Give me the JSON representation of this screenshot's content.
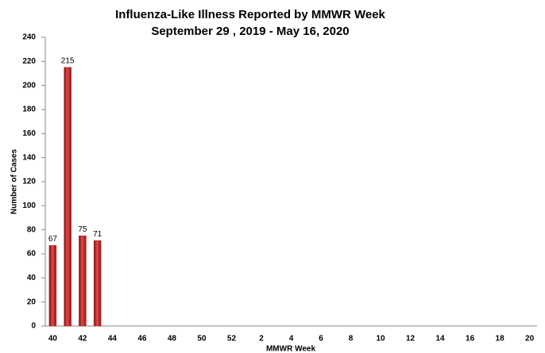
{
  "chart_data": {
    "type": "bar",
    "title": "Influenza-Like Illness Reported by MMWR Week",
    "subtitle": "September 29 , 2019 - May 16, 2020",
    "x_label": "MMWR Week",
    "y_label": "Number of Cases",
    "categories": [
      "40",
      null,
      "42",
      null,
      "44",
      null,
      "46",
      null,
      "48",
      null,
      "50",
      null,
      "52",
      null,
      "2",
      null,
      "4",
      null,
      "6",
      null,
      "8",
      null,
      "10",
      null,
      "12",
      null,
      "14",
      null,
      "16",
      null,
      "18",
      null,
      "20"
    ],
    "values": [
      67,
      215,
      75,
      71,
      null,
      null,
      null,
      null,
      null,
      null,
      null,
      null,
      null,
      null,
      null,
      null,
      null,
      null,
      null,
      null,
      null,
      null,
      null,
      null,
      null,
      null,
      null,
      null,
      null,
      null,
      null,
      null,
      null
    ],
    "color": "#c0282b",
    "ylim": [
      0,
      240
    ],
    "yticks": [
      0,
      20,
      40,
      60,
      80,
      100,
      120,
      140,
      160,
      180,
      200,
      220,
      240
    ],
    "grid": false
  }
}
